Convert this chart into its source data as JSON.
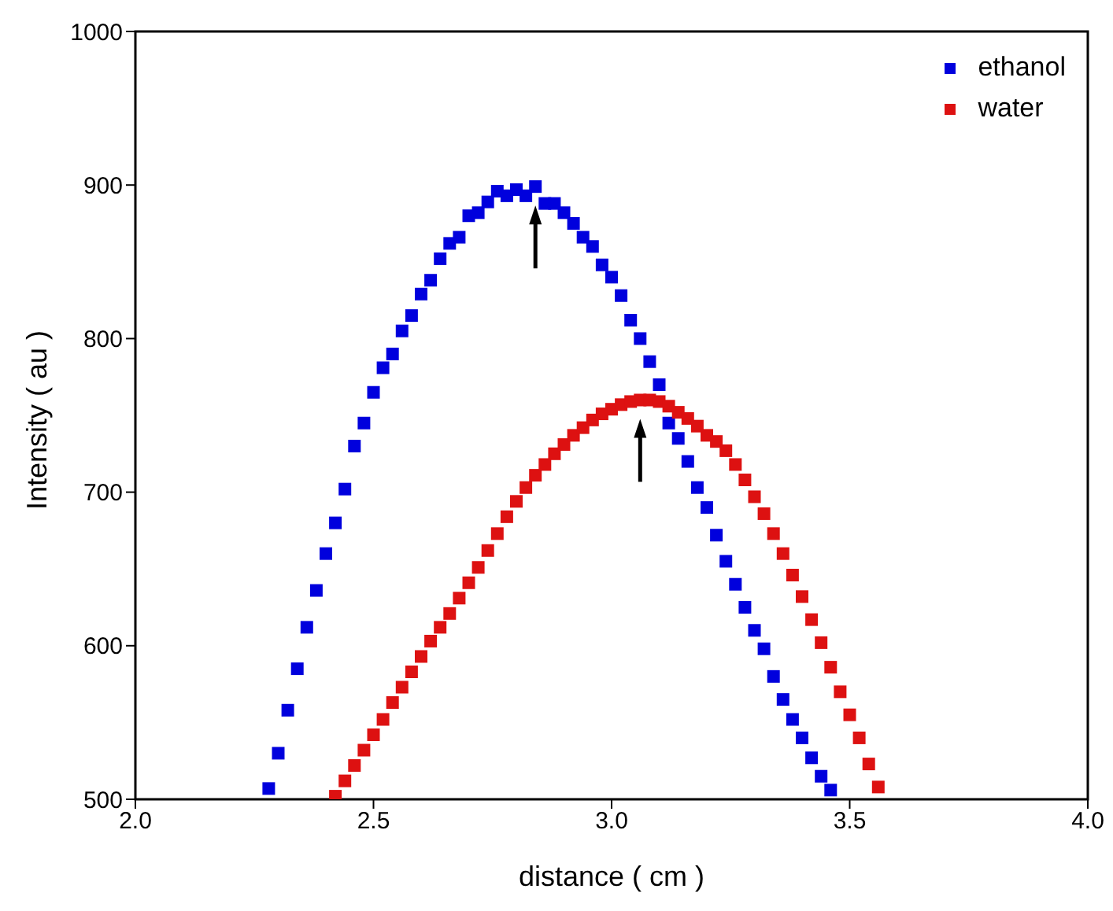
{
  "chart_data": {
    "type": "scatter",
    "xlabel": "distance ( cm )",
    "ylabel": "Intensity ( au )",
    "xlim": [
      2,
      4
    ],
    "ylim": [
      500,
      1000
    ],
    "xticks": [
      {
        "value": 2,
        "label": "2.0"
      },
      {
        "value": 2.5,
        "label": "2.5"
      },
      {
        "value": 3,
        "label": "3.0"
      },
      {
        "value": 3.5,
        "label": "3.5"
      },
      {
        "value": 4,
        "label": "4.0"
      }
    ],
    "yticks": [
      500,
      600,
      700,
      800,
      900,
      1000
    ],
    "grid": false,
    "legend": "top right",
    "marker": "square",
    "series": [
      {
        "name": "ethanol",
        "color": "#0000dd",
        "x": [
          2.28,
          2.3,
          2.32,
          2.34,
          2.36,
          2.38,
          2.4,
          2.42,
          2.44,
          2.46,
          2.48,
          2.5,
          2.52,
          2.54,
          2.56,
          2.58,
          2.6,
          2.62,
          2.64,
          2.66,
          2.68,
          2.7,
          2.72,
          2.74,
          2.76,
          2.78,
          2.8,
          2.82,
          2.84,
          2.86,
          2.88,
          2.9,
          2.92,
          2.94,
          2.96,
          2.98,
          3.0,
          3.02,
          3.04,
          3.06,
          3.08,
          3.1,
          3.12,
          3.14,
          3.16,
          3.18,
          3.2,
          3.22,
          3.24,
          3.26,
          3.28,
          3.3,
          3.32,
          3.34,
          3.36,
          3.38,
          3.4,
          3.42,
          3.44,
          3.46
        ],
        "values": [
          507,
          530,
          558,
          585,
          612,
          636,
          660,
          680,
          702,
          730,
          745,
          765,
          781,
          790,
          805,
          815,
          829,
          838,
          852,
          862,
          866,
          880,
          882,
          889,
          896,
          893,
          897,
          893,
          899,
          888,
          888,
          882,
          875,
          866,
          860,
          848,
          840,
          828,
          812,
          800,
          785,
          770,
          745,
          735,
          720,
          703,
          690,
          672,
          655,
          640,
          625,
          610,
          598,
          580,
          565,
          552,
          540,
          527,
          515,
          506
        ]
      },
      {
        "name": "water",
        "color": "#dd1111",
        "x": [
          2.42,
          2.44,
          2.46,
          2.48,
          2.5,
          2.52,
          2.54,
          2.56,
          2.58,
          2.6,
          2.62,
          2.64,
          2.66,
          2.68,
          2.7,
          2.72,
          2.74,
          2.76,
          2.78,
          2.8,
          2.82,
          2.84,
          2.86,
          2.88,
          2.9,
          2.92,
          2.94,
          2.96,
          2.98,
          3.0,
          3.02,
          3.04,
          3.06,
          3.08,
          3.1,
          3.12,
          3.14,
          3.16,
          3.18,
          3.2,
          3.22,
          3.24,
          3.26,
          3.28,
          3.3,
          3.32,
          3.34,
          3.36,
          3.38,
          3.4,
          3.42,
          3.44,
          3.46,
          3.48,
          3.5,
          3.52,
          3.54,
          3.56
        ],
        "values": [
          502,
          512,
          522,
          532,
          542,
          552,
          563,
          573,
          583,
          593,
          603,
          612,
          621,
          631,
          641,
          651,
          662,
          673,
          684,
          694,
          703,
          711,
          718,
          725,
          731,
          737,
          742,
          747,
          751,
          754,
          757,
          759,
          760,
          760,
          759,
          756,
          752,
          748,
          743,
          737,
          733,
          727,
          718,
          708,
          697,
          686,
          673,
          660,
          646,
          632,
          617,
          602,
          586,
          570,
          555,
          540,
          523,
          508
        ]
      }
    ]
  }
}
